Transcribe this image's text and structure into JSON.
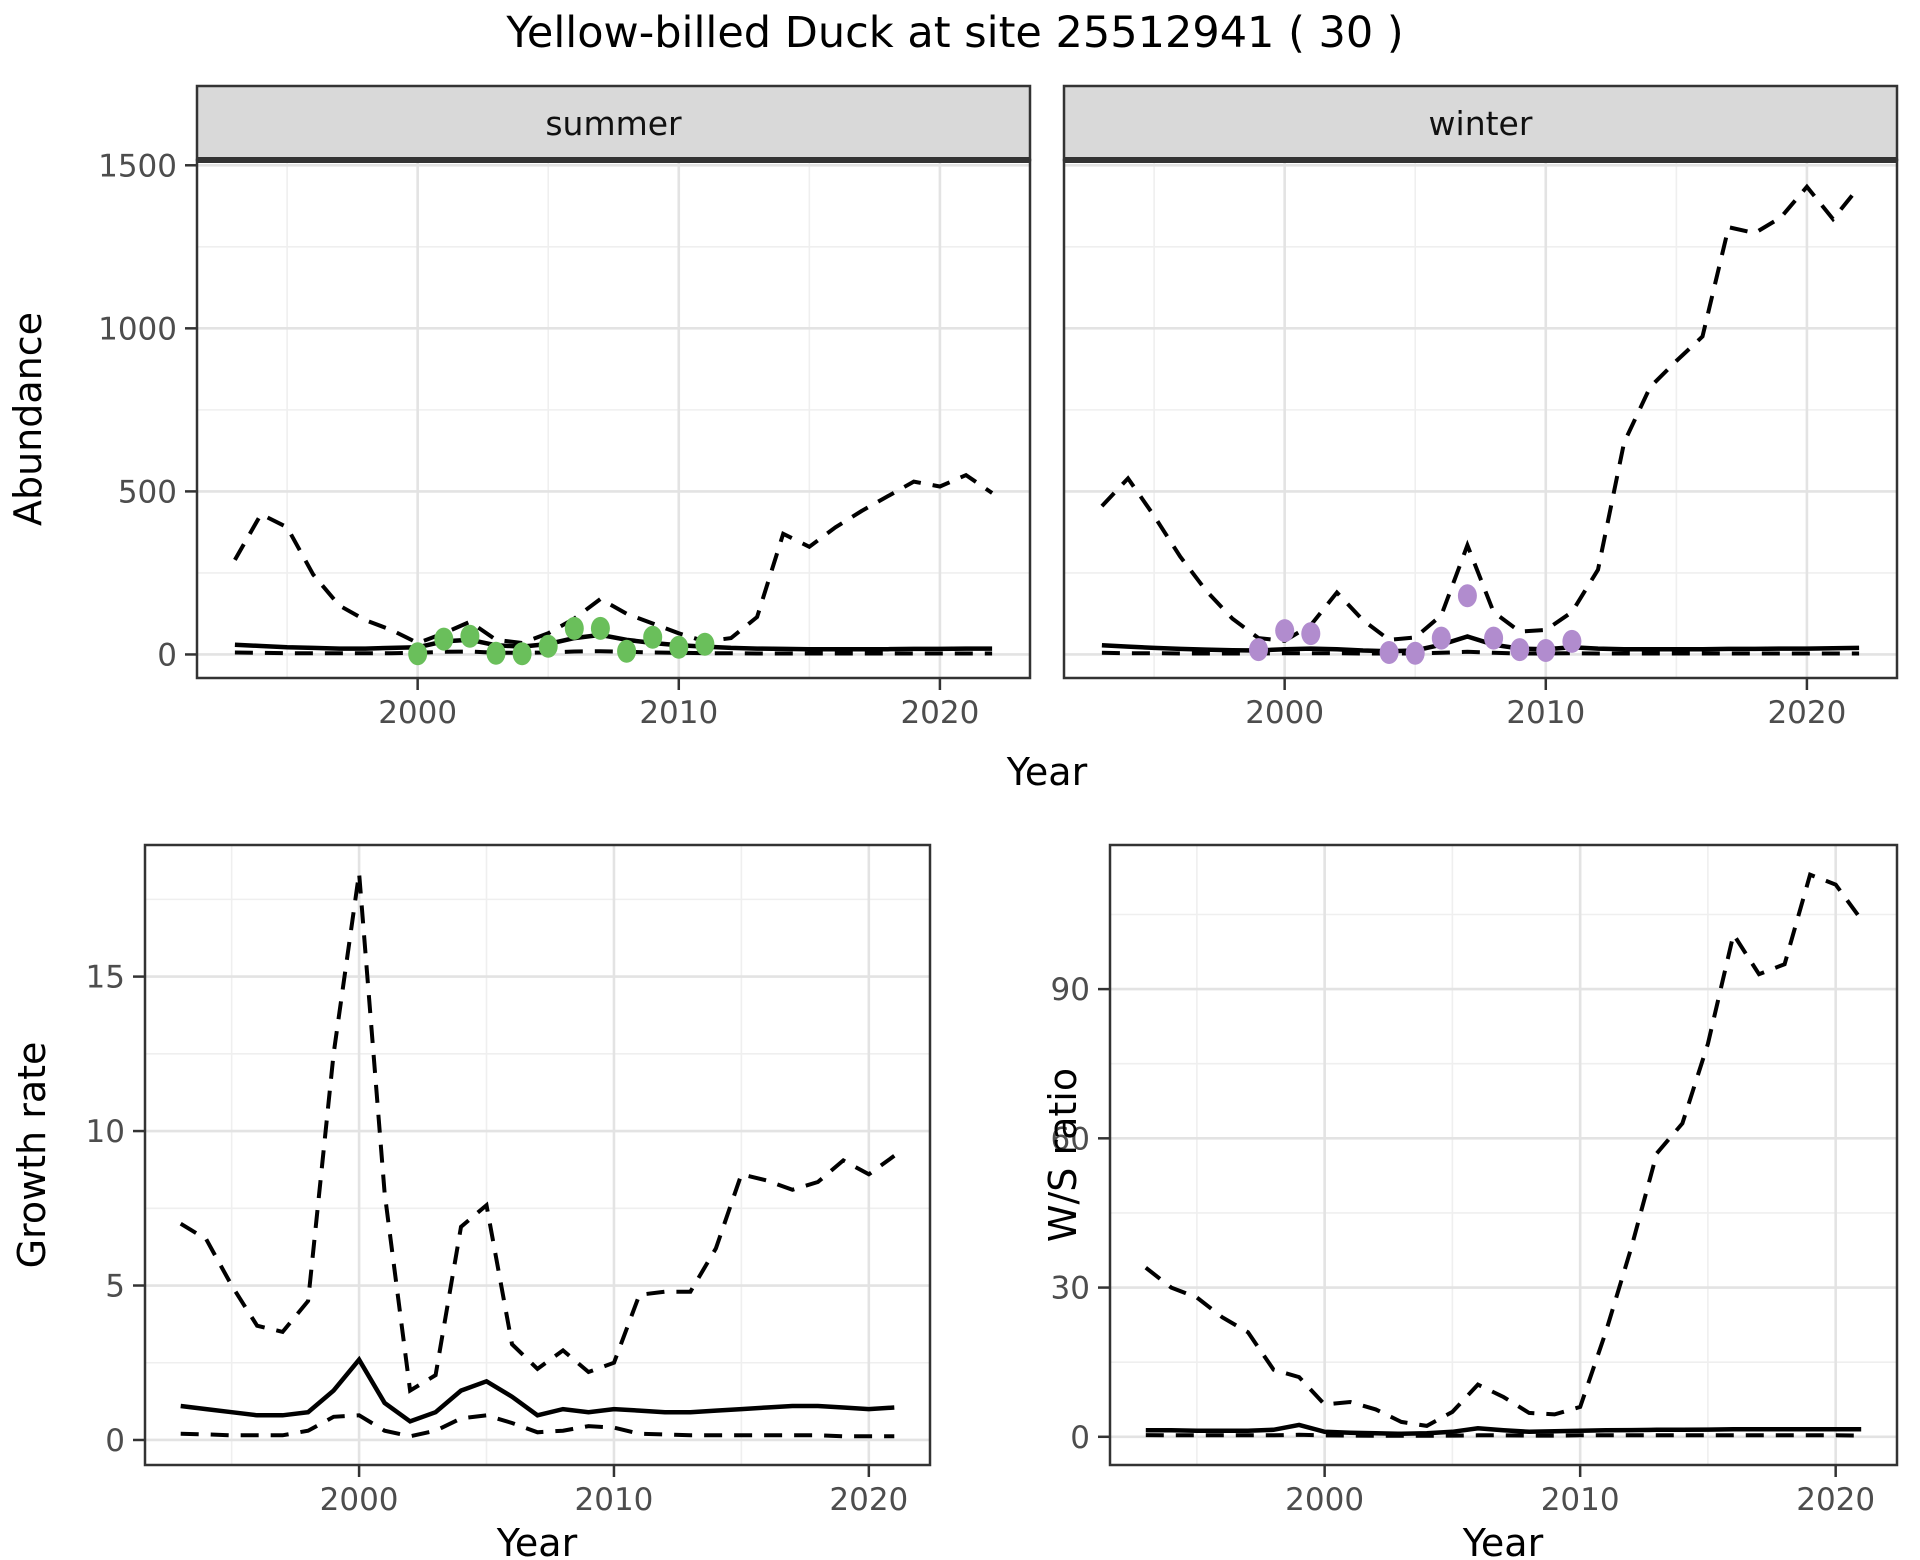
{
  "title": "Yellow-billed Duck at site 25512941 ( 30 )",
  "axis_labels": {
    "abundance": "Abundance",
    "year": "Year",
    "growth_rate": "Growth rate",
    "ws_ratio": "W/S ratio"
  },
  "facets": [
    "summer",
    "winter"
  ],
  "colors": {
    "line": "#000000",
    "summer_points": "#6abf5b",
    "winter_points": "#b18cce",
    "strip_bg": "#d9d9d9",
    "strip_border": "#333333",
    "panel_border": "#333333",
    "grid_major": "#e3e3e3",
    "grid_minor": "#efefef",
    "tick_text": "#4d4d4d"
  },
  "chart_data": [
    {
      "id": "summer",
      "type": "line",
      "facet_label": "summer",
      "title": "Abundance - summer facet",
      "xlabel": "Year",
      "ylabel": "Abundance",
      "xlim": [
        1991.55,
        2023.45
      ],
      "ylim": [
        -72.2,
        1516.2
      ],
      "x_major": [
        2000,
        2010,
        2020
      ],
      "x_minor": [
        1995,
        2005,
        2015
      ],
      "y_major": [
        0,
        500,
        1000,
        1500
      ],
      "y_minor": [
        250,
        750,
        1250
      ],
      "line_years": [
        1993,
        1994,
        1995,
        1996,
        1997,
        1998,
        1999,
        2000,
        2001,
        2002,
        2003,
        2004,
        2005,
        2006,
        2007,
        2008,
        2009,
        2010,
        2011,
        2012,
        2013,
        2014,
        2015,
        2016,
        2017,
        2018,
        2019,
        2020,
        2021,
        2022
      ],
      "lines": [
        {
          "name": "upper-ci",
          "style": "dashed",
          "values": [
            290,
            430,
            390,
            245,
            150,
            105,
            75,
            35,
            65,
            100,
            45,
            35,
            65,
            110,
            170,
            125,
            95,
            65,
            40,
            50,
            115,
            370,
            330,
            390,
            440,
            485,
            530,
            515,
            550,
            495
          ]
        },
        {
          "name": "mean",
          "style": "solid",
          "values": [
            30,
            26,
            22,
            20,
            18,
            18,
            20,
            22,
            40,
            45,
            28,
            24,
            32,
            50,
            60,
            45,
            35,
            28,
            24,
            20,
            18,
            17,
            16,
            16,
            16,
            16,
            17,
            17,
            18,
            18
          ]
        },
        {
          "name": "lower-ci",
          "style": "dashed",
          "values": [
            6,
            5,
            4,
            4,
            4,
            4,
            4,
            5,
            8,
            9,
            5,
            5,
            6,
            9,
            10,
            8,
            6,
            5,
            4,
            4,
            3,
            3,
            3,
            3,
            3,
            3,
            3,
            3,
            3,
            3
          ]
        }
      ],
      "points": {
        "name": "observed-summer-counts",
        "color": "#6abf5b",
        "years": [
          2000,
          2001,
          2002,
          2003,
          2004,
          2005,
          2006,
          2007,
          2008,
          2009,
          2010,
          2011
        ],
        "values": [
          2,
          47,
          56,
          4,
          2,
          25,
          80,
          80,
          10,
          53,
          22,
          31
        ]
      }
    },
    {
      "id": "winter",
      "type": "line",
      "facet_label": "winter",
      "title": "Abundance - winter facet",
      "xlabel": "Year",
      "ylabel": "Abundance",
      "xlim": [
        1991.55,
        2023.45
      ],
      "ylim": [
        -72.2,
        1516.2
      ],
      "x_major": [
        2000,
        2010,
        2020
      ],
      "x_minor": [
        1995,
        2005,
        2015
      ],
      "y_major": [
        0,
        500,
        1000,
        1500
      ],
      "y_minor": [
        250,
        750,
        1250
      ],
      "line_years": [
        1993,
        1994,
        1995,
        1996,
        1997,
        1998,
        1999,
        2000,
        2001,
        2002,
        2003,
        2004,
        2005,
        2006,
        2007,
        2008,
        2009,
        2010,
        2011,
        2012,
        2013,
        2014,
        2015,
        2016,
        2017,
        2018,
        2019,
        2020,
        2021,
        2022
      ],
      "lines": [
        {
          "name": "upper-ci",
          "style": "dashed",
          "values": [
            455,
            540,
            425,
            300,
            195,
            110,
            50,
            42,
            90,
            190,
            105,
            45,
            52,
            120,
            335,
            130,
            70,
            75,
            130,
            260,
            650,
            820,
            900,
            975,
            1310,
            1292,
            1340,
            1434,
            1335,
            1434
          ]
        },
        {
          "name": "mean",
          "style": "solid",
          "values": [
            28,
            24,
            20,
            17,
            15,
            13,
            12,
            16,
            18,
            16,
            12,
            10,
            12,
            30,
            55,
            30,
            18,
            16,
            22,
            18,
            16,
            16,
            16,
            16,
            17,
            17,
            18,
            18,
            19,
            20
          ]
        },
        {
          "name": "lower-ci",
          "style": "dashed",
          "values": [
            5,
            4,
            4,
            3,
            3,
            3,
            3,
            4,
            4,
            4,
            3,
            3,
            3,
            5,
            8,
            5,
            3,
            3,
            4,
            3,
            3,
            3,
            3,
            3,
            3,
            3,
            3,
            3,
            3,
            3
          ]
        }
      ],
      "points": {
        "name": "observed-winter-counts",
        "color": "#b18cce",
        "years": [
          1999,
          2000,
          2001,
          2004,
          2005,
          2006,
          2007,
          2008,
          2009,
          2010,
          2011
        ],
        "values": [
          15,
          73,
          64,
          6,
          4,
          50,
          180,
          50,
          15,
          12,
          40
        ]
      }
    },
    {
      "id": "growth",
      "type": "line",
      "facet_label": null,
      "title": "Growth rate",
      "xlabel": "Year",
      "ylabel": "Growth rate",
      "xlim": [
        1991.6,
        2022.4
      ],
      "ylim": [
        -0.81,
        19.26
      ],
      "x_major": [
        2000,
        2010,
        2020
      ],
      "x_minor": [
        1995,
        2005,
        2015
      ],
      "y_major": [
        0,
        5,
        10,
        15
      ],
      "y_minor": [
        2.5,
        7.5,
        12.5,
        17.5
      ],
      "line_years": [
        1993,
        1994,
        1995,
        1996,
        1997,
        1998,
        1999,
        2000,
        2001,
        2002,
        2003,
        2004,
        2005,
        2006,
        2007,
        2008,
        2009,
        2010,
        2011,
        2012,
        2013,
        2014,
        2015,
        2016,
        2017,
        2018,
        2019,
        2020,
        2021
      ],
      "lines": [
        {
          "name": "upper-ci",
          "style": "dashed",
          "values": [
            7.0,
            6.5,
            5.0,
            3.7,
            3.5,
            4.5,
            12.5,
            18.35,
            8.0,
            1.6,
            2.1,
            6.9,
            7.6,
            3.1,
            2.3,
            2.9,
            2.2,
            2.5,
            4.7,
            4.8,
            4.8,
            6.2,
            8.6,
            8.4,
            8.1,
            8.35,
            9.05,
            8.6,
            9.2
          ]
        },
        {
          "name": "mean",
          "style": "solid",
          "values": [
            1.1,
            1.0,
            0.9,
            0.8,
            0.8,
            0.9,
            1.6,
            2.6,
            1.2,
            0.6,
            0.9,
            1.6,
            1.9,
            1.4,
            0.8,
            1.0,
            0.9,
            1.0,
            0.95,
            0.9,
            0.9,
            0.95,
            1.0,
            1.05,
            1.1,
            1.1,
            1.05,
            1.0,
            1.05
          ]
        },
        {
          "name": "lower-ci",
          "style": "dashed",
          "values": [
            0.2,
            0.18,
            0.15,
            0.15,
            0.15,
            0.3,
            0.75,
            0.8,
            0.3,
            0.12,
            0.3,
            0.7,
            0.8,
            0.55,
            0.25,
            0.3,
            0.45,
            0.4,
            0.2,
            0.18,
            0.15,
            0.15,
            0.15,
            0.15,
            0.15,
            0.15,
            0.12,
            0.12,
            0.12
          ]
        }
      ],
      "points": null
    },
    {
      "id": "ws",
      "type": "line",
      "facet_label": null,
      "title": "W/S ratio",
      "xlabel": "Year",
      "ylabel": "W/S ratio",
      "xlim": [
        1991.6,
        2022.4
      ],
      "ylim": [
        -5.67,
        118.97
      ],
      "x_major": [
        2000,
        2010,
        2020
      ],
      "x_minor": [
        1995,
        2005,
        2015
      ],
      "y_major": [
        0,
        30,
        60,
        90
      ],
      "y_minor": [
        15,
        45,
        75,
        105
      ],
      "line_years": [
        1993,
        1994,
        1995,
        1996,
        1997,
        1998,
        1999,
        2000,
        2001,
        2002,
        2003,
        2004,
        2005,
        2006,
        2007,
        2008,
        2009,
        2010,
        2011,
        2012,
        2013,
        2014,
        2015,
        2016,
        2017,
        2018,
        2019,
        2020,
        2021
      ],
      "lines": [
        {
          "name": "upper-ci",
          "style": "dashed",
          "values": [
            34,
            30,
            28,
            24,
            21,
            13.5,
            12,
            6.5,
            7,
            5.5,
            3,
            2.2,
            5,
            10.5,
            8,
            4.8,
            4.5,
            6,
            21,
            38,
            57,
            63,
            79,
            101,
            93,
            95,
            113,
            111,
            104
          ]
        },
        {
          "name": "mean",
          "style": "solid",
          "values": [
            1.3,
            1.3,
            1.2,
            1.2,
            1.2,
            1.4,
            2.4,
            1.0,
            0.8,
            0.7,
            0.6,
            0.7,
            1.0,
            1.7,
            1.3,
            1.0,
            1.1,
            1.2,
            1.3,
            1.35,
            1.4,
            1.4,
            1.45,
            1.5,
            1.5,
            1.5,
            1.5,
            1.5,
            1.5
          ]
        },
        {
          "name": "lower-ci",
          "style": "dashed",
          "values": [
            0.35,
            0.3,
            0.3,
            0.3,
            0.3,
            0.3,
            0.4,
            0.3,
            0.25,
            0.2,
            0.2,
            0.2,
            0.25,
            0.3,
            0.3,
            0.25,
            0.25,
            0.3,
            0.3,
            0.3,
            0.3,
            0.3,
            0.3,
            0.3,
            0.3,
            0.3,
            0.3,
            0.3,
            0.25
          ]
        }
      ],
      "points": null
    }
  ]
}
